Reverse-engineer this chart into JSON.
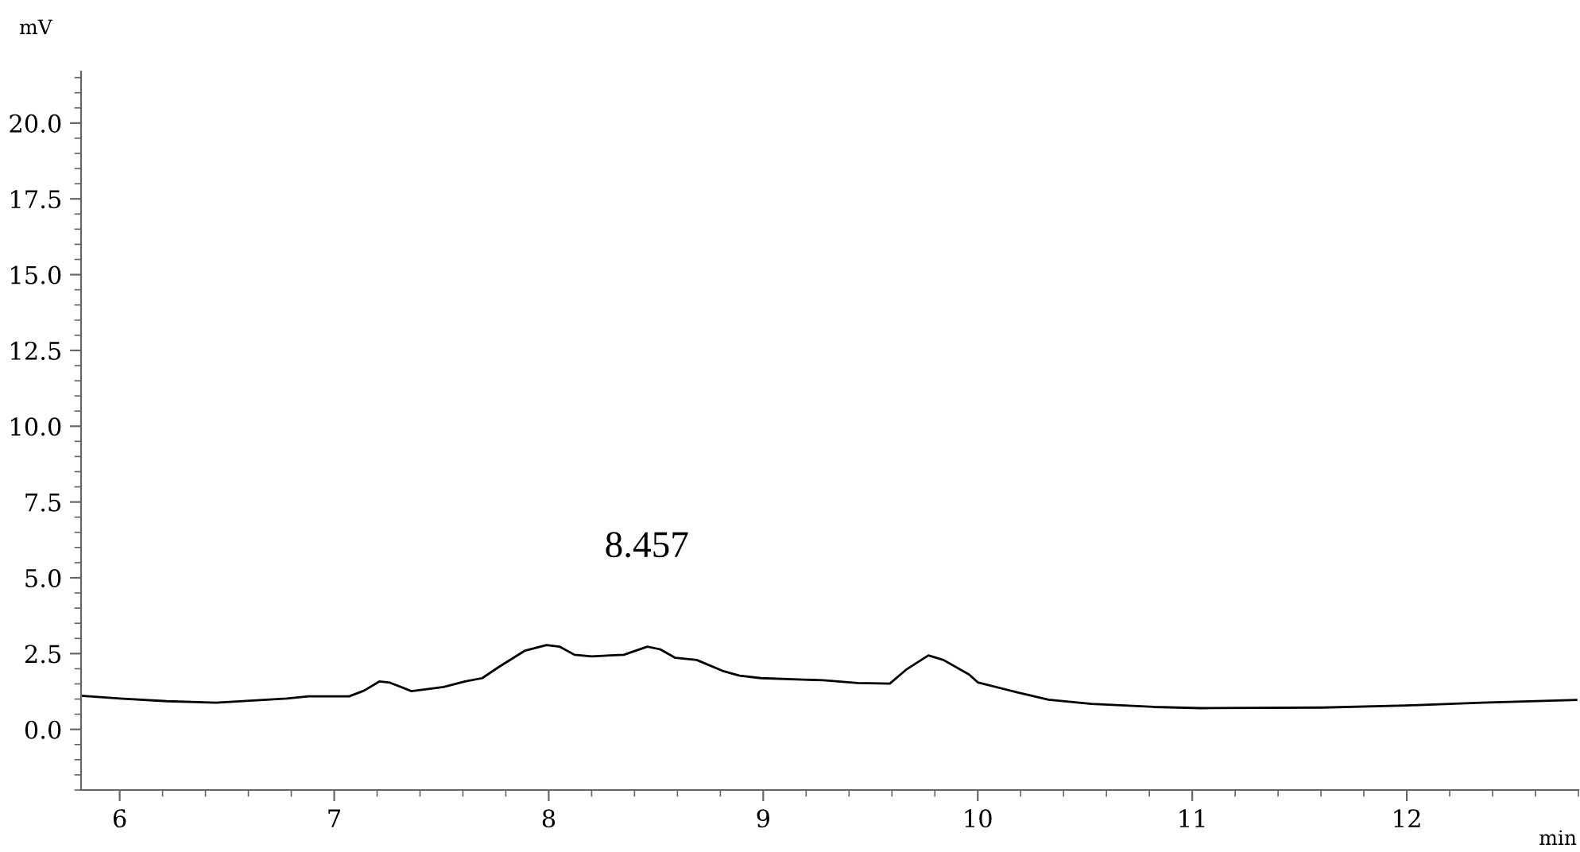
{
  "chart_data": {
    "type": "line",
    "xlabel": "min",
    "ylabel": "mV",
    "x": [
      5.82,
      6.0,
      6.22,
      6.45,
      6.78,
      6.88,
      7.07,
      7.14,
      7.21,
      7.26,
      7.36,
      7.51,
      7.61,
      7.69,
      7.77,
      7.89,
      7.99,
      8.05,
      8.12,
      8.2,
      8.35,
      8.46,
      8.52,
      8.59,
      8.69,
      8.81,
      8.89,
      8.99,
      9.28,
      9.44,
      9.59,
      9.67,
      9.77,
      9.84,
      9.96,
      10.0,
      10.18,
      10.33,
      10.53,
      10.82,
      11.04,
      11.61,
      12.0,
      12.35,
      12.79
    ],
    "series": [
      {
        "color": "#000000",
        "values": [
          1.11,
          1.02,
          0.93,
          0.88,
          1.02,
          1.09,
          1.09,
          1.28,
          1.58,
          1.54,
          1.26,
          1.4,
          1.58,
          1.69,
          2.07,
          2.6,
          2.78,
          2.73,
          2.46,
          2.41,
          2.46,
          2.73,
          2.64,
          2.36,
          2.29,
          1.93,
          1.77,
          1.69,
          1.62,
          1.53,
          1.51,
          1.99,
          2.44,
          2.29,
          1.81,
          1.55,
          1.23,
          0.98,
          0.84,
          0.74,
          0.7,
          0.72,
          0.79,
          0.88,
          0.97
        ]
      }
    ],
    "xlim": [
      5.82,
      12.8
    ],
    "xticks": [
      6,
      7,
      8,
      9,
      10,
      11,
      12
    ],
    "ylim": [
      -2.0,
      21.7
    ],
    "yticks": [
      {
        "value": 0,
        "label": "0.0"
      },
      {
        "value": 2.5,
        "label": "2.5"
      },
      {
        "value": 5,
        "label": "5.0"
      },
      {
        "value": 7.5,
        "label": "7.5"
      },
      {
        "value": 10,
        "label": "10.0"
      },
      {
        "value": 12.5,
        "label": "12.5"
      },
      {
        "value": 15,
        "label": "15.0"
      },
      {
        "value": 17.5,
        "label": "17.5"
      },
      {
        "value": 20,
        "label": "20.0"
      }
    ],
    "annotations": [
      {
        "text": "8.457",
        "x": 8.457,
        "y": 2.73
      }
    ],
    "grid": false,
    "marker": "none",
    "line_style": "solid"
  }
}
